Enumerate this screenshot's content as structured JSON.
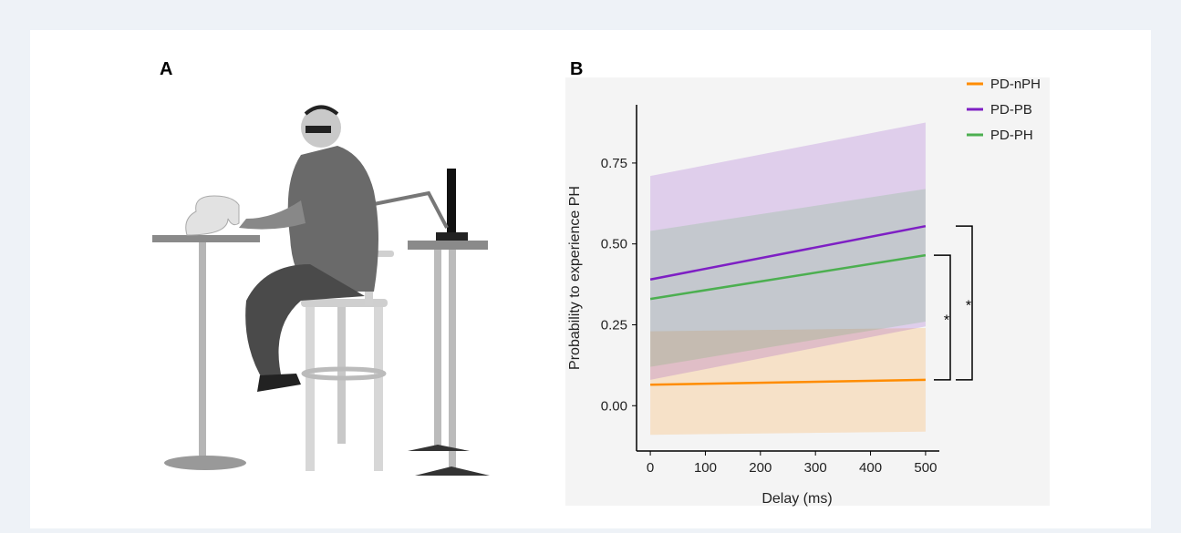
{
  "figure": {
    "panels": [
      "A",
      "B"
    ]
  },
  "chart_data": {
    "type": "line",
    "xlabel": "Delay (ms)",
    "ylabel": "Probability to experience PH",
    "x": [
      0,
      500
    ],
    "series": [
      {
        "name": "PD-nPH",
        "color": "#ff8c00",
        "values": [
          0.065,
          0.08
        ],
        "lower": [
          -0.09,
          -0.08
        ],
        "upper": [
          0.23,
          0.24
        ]
      },
      {
        "name": "PD-PB",
        "color": "#7e1fc4",
        "values": [
          0.39,
          0.555
        ],
        "lower": [
          0.08,
          0.245
        ],
        "upper": [
          0.71,
          0.875
        ]
      },
      {
        "name": "PD-PH",
        "color": "#4caf50",
        "values": [
          0.33,
          0.465
        ],
        "lower": [
          0.12,
          0.26
        ],
        "upper": [
          0.54,
          0.67
        ]
      }
    ],
    "annotations": [
      "*",
      "*"
    ],
    "xlim": [
      -25,
      525
    ],
    "ylim": [
      -0.14,
      0.93
    ],
    "xticks": [
      0,
      100,
      200,
      300,
      400,
      500
    ],
    "yticks": [
      {
        "value": 0,
        "label": "0.00"
      },
      {
        "value": 0.25,
        "label": "0.25"
      },
      {
        "value": 0.5,
        "label": "0.50"
      },
      {
        "value": 0.75,
        "label": "0.75"
      }
    ],
    "legend": "upper right"
  }
}
